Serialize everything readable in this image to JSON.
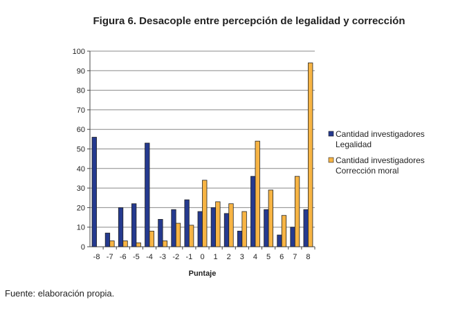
{
  "chart_data": {
    "type": "bar",
    "title": "Figura 6. Desacople entre percepción de legalidad y corrección",
    "xlabel": "Puntaje",
    "ylabel": "",
    "categories": [
      "-8",
      "-7",
      "-6",
      "-5",
      "-4",
      "-3",
      "-2",
      "-1",
      "0",
      "1",
      "2",
      "3",
      "4",
      "5",
      "6",
      "7",
      "8"
    ],
    "ylim": [
      0,
      100
    ],
    "yticks": [
      "0",
      "10",
      "20",
      "30",
      "40",
      "50",
      "60",
      "70",
      "80",
      "90",
      "100"
    ],
    "grid": true,
    "legend_position": "right",
    "series": [
      {
        "name": "Cantidad investigadores Legalidad",
        "legend_lines": [
          "Cantidad investigadores",
          "Legalidad"
        ],
        "color": "#253a8f",
        "values": [
          56,
          7,
          20,
          22,
          53,
          14,
          19,
          24,
          18,
          20,
          17,
          8,
          36,
          19,
          6,
          10,
          19
        ]
      },
      {
        "name": "Cantidad investigadores Corrección moral",
        "legend_lines": [
          "Cantidad investigadores",
          "Corrección moral"
        ],
        "color": "#f7b444",
        "values": [
          0,
          3,
          3,
          2,
          8,
          3,
          12,
          11,
          34,
          23,
          22,
          18,
          54,
          29,
          16,
          36,
          94
        ]
      }
    ]
  },
  "source": "Fuente: elaboración propia."
}
